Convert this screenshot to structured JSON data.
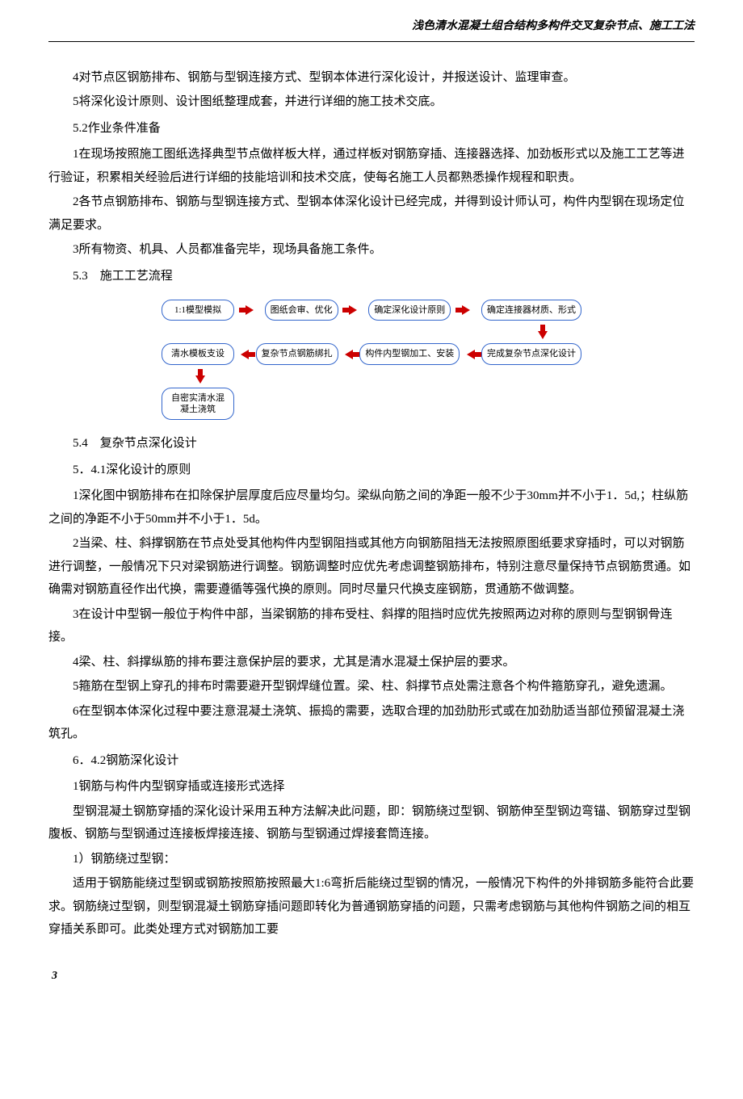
{
  "header": {
    "title": "浅色清水混凝土组合结构多构件交叉复杂节点、施工工法"
  },
  "paragraphs": {
    "p1": "4对节点区钢筋排布、钢筋与型钢连接方式、型钢本体进行深化设计，并报送设计、监理审查。",
    "p2": "5将深化设计原则、设计图纸整理成套，并进行详细的施工技术交底。",
    "h1": "5.2作业条件准备",
    "p3": "1在现场按照施工图纸选择典型节点做样板大样，通过样板对钢筋穿插、连接器选择、加劲板形式以及施工工艺等进行验证，积累相关经验后进行详细的技能培训和技术交底，使每名施工人员都熟悉操作规程和职责。",
    "p4": "2各节点钢筋排布、钢筋与型钢连接方式、型钢本体深化设计已经完成，并得到设计师认可，构件内型钢在现场定位满足要求。",
    "p5": "3所有物资、机具、人员都准备完毕，现场具备施工条件。",
    "h2": "5.3　施工工艺流程",
    "h3": "5.4　复杂节点深化设计",
    "h4": "5．4.1深化设计的原则",
    "p6": "1深化图中钢筋排布在扣除保护层厚度后应尽量均匀。梁纵向筋之间的净距一般不少于30mm并不小于1．5d,；柱纵筋之间的净距不小于50mm并不小于1．5d。",
    "p7": "2当梁、柱、斜撑钢筋在节点处受其他构件内型钢阻挡或其他方向钢筋阻挡无法按照原图纸要求穿插时，可以对钢筋进行调整，一般情况下只对梁钢筋进行调整。钢筋调整时应优先考虑调整钢筋排布，特别注意尽量保持节点钢筋贯通。如确需对钢筋直径作出代换，需要遵循等强代换的原则。同时尽量只代换支座钢筋，贯通筋不做调整。",
    "p8": "3在设计中型钢一般位于构件中部，当梁钢筋的排布受柱、斜撑的阻挡时应优先按照两边对称的原则与型钢钢骨连接。",
    "p9": "4梁、柱、斜撑纵筋的排布要注意保护层的要求，尤其是清水混凝土保护层的要求。",
    "p10": "5箍筋在型钢上穿孔的排布时需要避开型钢焊缝位置。梁、柱、斜撑节点处需注意各个构件箍筋穿孔，避免遗漏。",
    "p11": "6在型钢本体深化过程中要注意混凝土浇筑、振捣的需要，选取合理的加劲肋形式或在加劲肋适当部位预留混凝土浇筑孔。",
    "h5": "6．4.2钢筋深化设计",
    "p12": "1钢筋与构件内型钢穿插或连接形式选择",
    "p13": "型钢混凝土钢筋穿插的深化设计采用五种方法解决此问题，即：钢筋绕过型钢、钢筋伸至型钢边弯锚、钢筋穿过型钢腹板、钢筋与型钢通过连接板焊接连接、钢筋与型钢通过焊接套筒连接。",
    "p14": "1）钢筋绕过型钢：",
    "p15": "适用于钢筋能绕过型钢或钢筋按照筋按照最大1:6弯折后能绕过型钢的情况，一般情况下构件的外排钢筋多能符合此要求。钢筋绕过型钢，则型钢混凝土钢筋穿插问题即转化为普通钢筋穿插的问题，只需考虑钢筋与其他构件钢筋之间的相互穿插关系即可。此类处理方式对钢筋加工要"
  },
  "flowchart": {
    "node1": "1:1模型模拟",
    "node2": "图纸会审、优化",
    "node3": "确定深化设计原则",
    "node4": "确定连接器材质、形式",
    "node5": "清水模板支设",
    "node6": "复杂节点钢筋绑扎",
    "node7": "构件内型钢加工、安装",
    "node8": "完成复杂节点深化设计",
    "node9": "自密实清水混凝土浇筑",
    "border_color": "#3366cc",
    "arrow_color": "#cc0000"
  },
  "page_number": "3"
}
